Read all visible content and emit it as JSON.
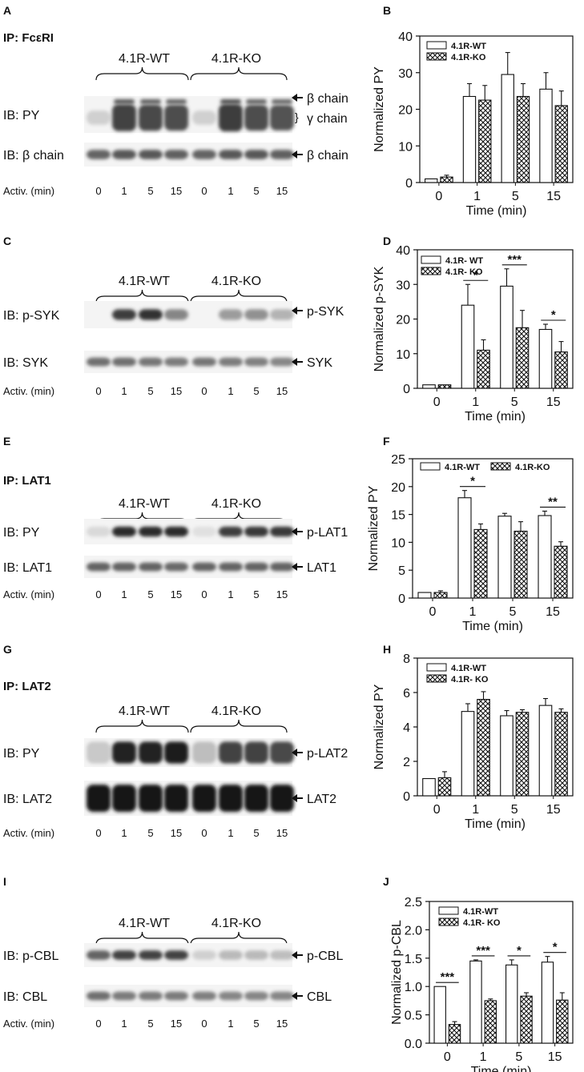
{
  "panels": [
    {
      "letter": "A",
      "ip": "IP: FcεRI",
      "groups": [
        "4.1R-WT",
        "4.1R-KO"
      ],
      "rows": [
        {
          "label": "IB: PY",
          "markers": [
            "β chain",
            "γ chain"
          ],
          "intensity": [
            0.12,
            0.75,
            0.72,
            0.7,
            0.12,
            0.78,
            0.7,
            0.68
          ]
        },
        {
          "label": "IB: β chain",
          "markers": [
            "β chain"
          ],
          "intensity": [
            0.6,
            0.65,
            0.65,
            0.62,
            0.6,
            0.65,
            0.65,
            0.62
          ]
        }
      ],
      "activ_label": "Activ. (min)",
      "times": [
        "0",
        "1",
        "5",
        "15",
        "0",
        "1",
        "5",
        "15"
      ]
    },
    {
      "letter": "C",
      "ip": "",
      "groups": [
        "4.1R-WT",
        "4.1R-KO"
      ],
      "rows": [
        {
          "label": "IB: p-SYK",
          "markers": [
            "p-SYK"
          ],
          "intensity": [
            0.0,
            0.78,
            0.82,
            0.45,
            0.0,
            0.35,
            0.4,
            0.25
          ]
        },
        {
          "label": "IB: SYK",
          "markers": [
            "SYK"
          ],
          "intensity": [
            0.55,
            0.55,
            0.52,
            0.5,
            0.52,
            0.5,
            0.48,
            0.45
          ]
        }
      ],
      "activ_label": "Activ. (min)",
      "times": [
        "0",
        "1",
        "5",
        "15",
        "0",
        "1",
        "5",
        "15"
      ]
    },
    {
      "letter": "E",
      "ip": "IP: LAT1",
      "groups": [
        "4.1R-WT",
        "4.1R-KO"
      ],
      "rows": [
        {
          "label": "IB: PY",
          "markers": [
            "p-LAT1"
          ],
          "intensity": [
            0.08,
            0.85,
            0.85,
            0.85,
            0.05,
            0.78,
            0.8,
            0.8
          ]
        },
        {
          "label": "IB: LAT1",
          "markers": [
            "LAT1"
          ],
          "intensity": [
            0.6,
            0.6,
            0.6,
            0.58,
            0.6,
            0.6,
            0.6,
            0.6
          ]
        }
      ],
      "activ_label": "Activ. (min)",
      "times": [
        "0",
        "1",
        "5",
        "15",
        "0",
        "1",
        "5",
        "15"
      ]
    },
    {
      "letter": "G",
      "ip": "IP: LAT2",
      "groups": [
        "4.1R-WT",
        "4.1R-KO"
      ],
      "rows": [
        {
          "label": "IB: PY",
          "markers": [
            "p-LAT2"
          ],
          "intensity": [
            0.15,
            0.9,
            0.9,
            0.92,
            0.2,
            0.75,
            0.75,
            0.72
          ]
        },
        {
          "label": "IB: LAT2",
          "markers": [
            "LAT2"
          ],
          "intensity": [
            0.95,
            0.95,
            0.95,
            0.95,
            0.95,
            0.95,
            0.95,
            0.95
          ]
        }
      ],
      "activ_label": "Activ. (min)",
      "times": [
        "0",
        "1",
        "5",
        "15",
        "0",
        "1",
        "5",
        "15"
      ]
    },
    {
      "letter": "I",
      "ip": "",
      "groups": [
        "4.1R-WT",
        "4.1R-KO"
      ],
      "rows": [
        {
          "label": "IB: p-CBL",
          "markers": [
            "p-CBL"
          ],
          "intensity": [
            0.6,
            0.75,
            0.75,
            0.75,
            0.12,
            0.22,
            0.22,
            0.2
          ]
        },
        {
          "label": "IB: CBL",
          "markers": [
            "CBL"
          ],
          "intensity": [
            0.55,
            0.5,
            0.5,
            0.5,
            0.48,
            0.45,
            0.45,
            0.45
          ]
        }
      ],
      "activ_label": "Activ. (min)",
      "times": [
        "0",
        "1",
        "5",
        "15",
        "0",
        "1",
        "5",
        "15"
      ]
    }
  ],
  "chart_data": [
    {
      "letter": "B",
      "type": "bar",
      "categories": [
        "0",
        "1",
        "5",
        "15"
      ],
      "xlabel": "Time (min)",
      "ylabel": "Normalized PY",
      "ylim": [
        0,
        40
      ],
      "yticks": [
        0,
        10,
        20,
        30,
        40
      ],
      "legend_position": "top-left",
      "series": [
        {
          "name": "4.1R-WT",
          "pattern": "white",
          "values": [
            1,
            23.5,
            29.5,
            25.5
          ],
          "errors": [
            0,
            3.5,
            6,
            4.5
          ]
        },
        {
          "name": "4.1R-KO",
          "pattern": "crosshatch",
          "values": [
            1.5,
            22.5,
            23.5,
            21
          ],
          "errors": [
            0.5,
            4,
            3.5,
            4
          ]
        }
      ],
      "significance": []
    },
    {
      "letter": "D",
      "type": "bar",
      "categories": [
        "0",
        "1",
        "5",
        "15"
      ],
      "xlabel": "Time (min)",
      "ylabel": "Normalized p-SYK",
      "ylim": [
        0,
        40
      ],
      "yticks": [
        0,
        10,
        20,
        30,
        40
      ],
      "legend_position": "top-left",
      "series": [
        {
          "name": "4.1R- WT",
          "pattern": "white",
          "values": [
            1,
            24,
            29.5,
            17
          ],
          "errors": [
            0,
            6,
            5,
            1.5
          ]
        },
        {
          "name": "4.1R- KO",
          "pattern": "crosshatch",
          "values": [
            1,
            11,
            17.5,
            10.5
          ],
          "errors": [
            0,
            3,
            5,
            3
          ]
        }
      ],
      "significance": [
        {
          "category": 1,
          "label": "*"
        },
        {
          "category": 2,
          "label": "***"
        },
        {
          "category": 3,
          "label": "*"
        }
      ]
    },
    {
      "letter": "F",
      "type": "bar",
      "categories": [
        "0",
        "1",
        "5",
        "15"
      ],
      "xlabel": "Time (min)",
      "ylabel": "Normalized PY",
      "ylim": [
        0,
        25
      ],
      "yticks": [
        0,
        5,
        10,
        15,
        20,
        25
      ],
      "legend_position": "top",
      "series": [
        {
          "name": "4.1R-WT",
          "pattern": "white",
          "values": [
            1,
            18,
            14.7,
            14.8
          ],
          "errors": [
            0,
            1.3,
            0.5,
            0.8
          ]
        },
        {
          "name": "4.1R-KO",
          "pattern": "crosshatch",
          "values": [
            1,
            12.3,
            12,
            9.3
          ],
          "errors": [
            0.3,
            1,
            1.7,
            0.8
          ]
        }
      ],
      "significance": [
        {
          "category": 1,
          "label": "*"
        },
        {
          "category": 3,
          "label": "**"
        }
      ]
    },
    {
      "letter": "H",
      "type": "bar",
      "categories": [
        "0",
        "1",
        "5",
        "15"
      ],
      "xlabel": "Time (min)",
      "ylabel": "Normalized PY",
      "ylim": [
        0,
        8
      ],
      "yticks": [
        0,
        2,
        4,
        6,
        8
      ],
      "legend_position": "top-left",
      "series": [
        {
          "name": "4.1R-WT",
          "pattern": "white",
          "values": [
            1,
            4.9,
            4.65,
            5.25
          ],
          "errors": [
            0,
            0.45,
            0.3,
            0.4
          ]
        },
        {
          "name": "4.1R- KO",
          "pattern": "crosshatch",
          "values": [
            1.05,
            5.6,
            4.85,
            4.85
          ],
          "errors": [
            0.35,
            0.45,
            0.15,
            0.2
          ]
        }
      ],
      "significance": []
    },
    {
      "letter": "J",
      "type": "bar",
      "categories": [
        "0",
        "1",
        "5",
        "15"
      ],
      "xlabel": "Time (min)",
      "ylabel": "Normalized p-CBL",
      "ylim": [
        0,
        2.5
      ],
      "yticks": [
        "0.0",
        "0.5",
        "1.0",
        "1.5",
        "2.0",
        "2.5"
      ],
      "legend_position": "top-left",
      "series": [
        {
          "name": "4.1R-WT",
          "pattern": "white",
          "values": [
            1.0,
            1.45,
            1.38,
            1.43
          ],
          "errors": [
            0,
            0.02,
            0.09,
            0.1
          ]
        },
        {
          "name": "4.1R- KO",
          "pattern": "crosshatch",
          "values": [
            0.33,
            0.75,
            0.83,
            0.76
          ],
          "errors": [
            0.05,
            0.03,
            0.06,
            0.13
          ]
        }
      ],
      "significance": [
        {
          "category": 0,
          "label": "***"
        },
        {
          "category": 1,
          "label": "***"
        },
        {
          "category": 2,
          "label": "*"
        },
        {
          "category": 3,
          "label": "*"
        }
      ]
    }
  ]
}
